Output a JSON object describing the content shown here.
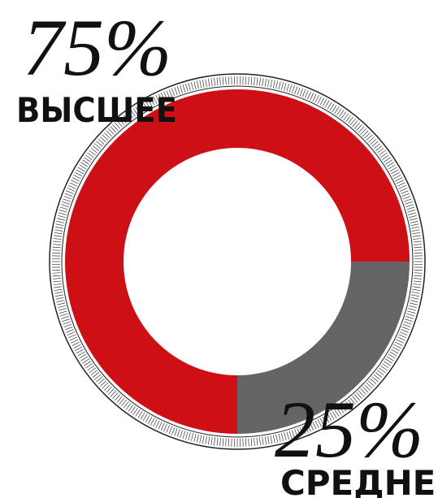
{
  "chart_data": {
    "type": "donut",
    "categories": [
      "ВЫСШЕЕ",
      "СРЕДНЕЕ"
    ],
    "values": [
      75,
      25
    ],
    "value_labels": [
      "75%",
      "25%"
    ],
    "colors": [
      "#cc1016",
      "#656565"
    ]
  }
}
